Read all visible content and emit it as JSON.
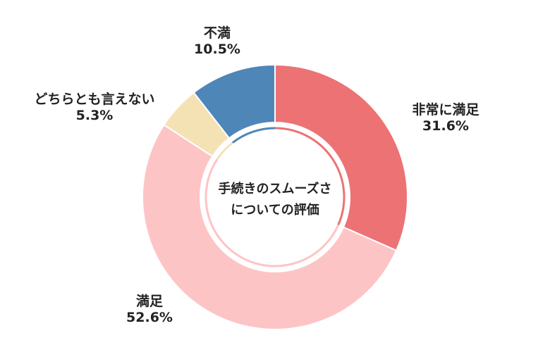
{
  "chart_data": {
    "type": "pie",
    "variant": "donut",
    "center_title_lines": [
      "手続きのスムーズさ",
      "についての評価"
    ],
    "slices": [
      {
        "label": "非常に満足",
        "value": 31.6,
        "value_label": "31.6%",
        "color": "#ec7274"
      },
      {
        "label": "満足",
        "value": 52.6,
        "value_label": "52.6%",
        "color": "#fdc4c6"
      },
      {
        "label": "どちらとも言えない",
        "value": 5.3,
        "value_label": "5.3%",
        "color": "#f5e2b4"
      },
      {
        "label": "不満",
        "value": 10.5,
        "value_label": "10.5%",
        "color": "#4f86b8"
      }
    ],
    "start_angle": "12 o'clock",
    "direction": "clockwise",
    "legend": "none"
  }
}
